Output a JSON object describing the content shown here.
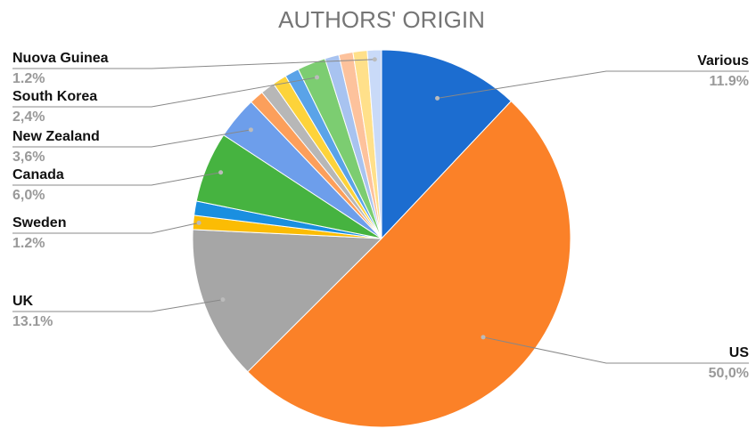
{
  "chart_data": {
    "type": "pie",
    "title": "AUTHORS' ORIGIN",
    "categories": [
      "Various",
      "US",
      "UK",
      "Sweden",
      null,
      "Canada",
      "New Zealand",
      null,
      null,
      null,
      null,
      "South Korea",
      null,
      null,
      null,
      "Nuova Guinea"
    ],
    "values": [
      11.9,
      50.0,
      13.1,
      1.2,
      1.2,
      6.0,
      3.6,
      1.2,
      1.2,
      1.2,
      1.2,
      2.4,
      1.2,
      1.2,
      1.2,
      1.2
    ],
    "value_labels": [
      "11.9%",
      "50,0%",
      "13.1%",
      "1.2%",
      null,
      "6,0%",
      "3,6%",
      null,
      null,
      null,
      null,
      "2,4%",
      null,
      null,
      null,
      "1.2%"
    ],
    "colors": [
      "#1c6dd0",
      "#fb8128",
      "#a6a6a6",
      "#fbbc04",
      "#1a8fe0",
      "#46b340",
      "#6d9eeb",
      "#fc9f5b",
      "#b7b7b7",
      "#fdd33a",
      "#5aa3e8",
      "#7ccd71",
      "#a8c3f0",
      "#fdc29c",
      "#ffe08a",
      "#c9daf8"
    ]
  }
}
